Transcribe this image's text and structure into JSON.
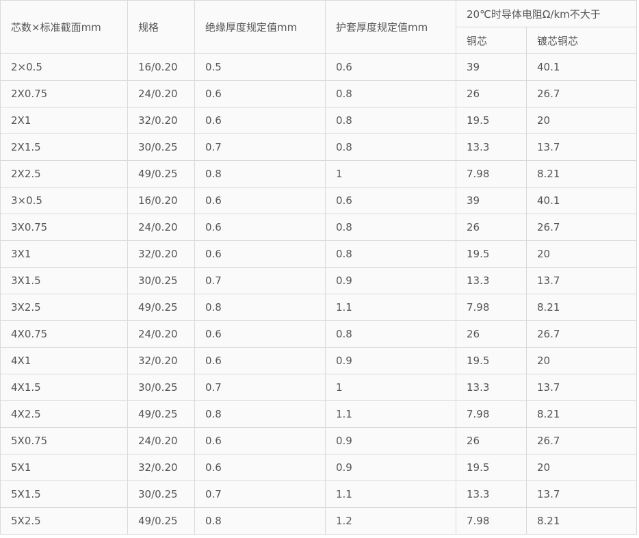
{
  "headers": {
    "core_section": "芯数×标准截面mm",
    "spec": "规格",
    "insulation": "绝缘厚度规定值mm",
    "sheath": "护套厚度规定值mm",
    "resistance_group": "20℃时导体电阻Ω/km不大于",
    "copper": "铜芯",
    "tinned_copper": "镀芯铜芯"
  },
  "rows": [
    [
      "2×0.5",
      "16/0.20",
      "0.5",
      "0.6",
      "39",
      "40.1"
    ],
    [
      "2X0.75",
      "24/0.20",
      "0.6",
      "0.8",
      "26",
      "26.7"
    ],
    [
      "2X1",
      "32/0.20",
      "0.6",
      "0.8",
      "19.5",
      "20"
    ],
    [
      "2X1.5",
      "30/0.25",
      "0.7",
      "0.8",
      "13.3",
      "13.7"
    ],
    [
      "2X2.5",
      "49/0.25",
      "0.8",
      "1",
      "7.98",
      "8.21"
    ],
    [
      "3×0.5",
      "16/0.20",
      "0.6",
      "0.6",
      "39",
      "40.1"
    ],
    [
      "3X0.75",
      "24/0.20",
      "0.6",
      "0.8",
      "26",
      "26.7"
    ],
    [
      "3X1",
      "32/0.20",
      "0.6",
      "0.8",
      "19.5",
      "20"
    ],
    [
      "3X1.5",
      "30/0.25",
      "0.7",
      "0.9",
      "13.3",
      "13.7"
    ],
    [
      "3X2.5",
      "49/0.25",
      "0.8",
      "1.1",
      "7.98",
      "8.21"
    ],
    [
      "4X0.75",
      "24/0.20",
      "0.6",
      "0.8",
      "26",
      "26.7"
    ],
    [
      "4X1",
      "32/0.20",
      "0.6",
      "0.9",
      "19.5",
      "20"
    ],
    [
      "4X1.5",
      "30/0.25",
      "0.7",
      "1",
      "13.3",
      "13.7"
    ],
    [
      "4X2.5",
      "49/0.25",
      "0.8",
      "1.1",
      "7.98",
      "8.21"
    ],
    [
      "5X0.75",
      "24/0.20",
      "0.6",
      "0.9",
      "26",
      "26.7"
    ],
    [
      "5X1",
      "32/0.20",
      "0.6",
      "0.9",
      "19.5",
      "20"
    ],
    [
      "5X1.5",
      "30/0.25",
      "0.7",
      "1.1",
      "13.3",
      "13.7"
    ],
    [
      "5X2.5",
      "49/0.25",
      "0.8",
      "1.2",
      "7.98",
      "8.21"
    ]
  ]
}
